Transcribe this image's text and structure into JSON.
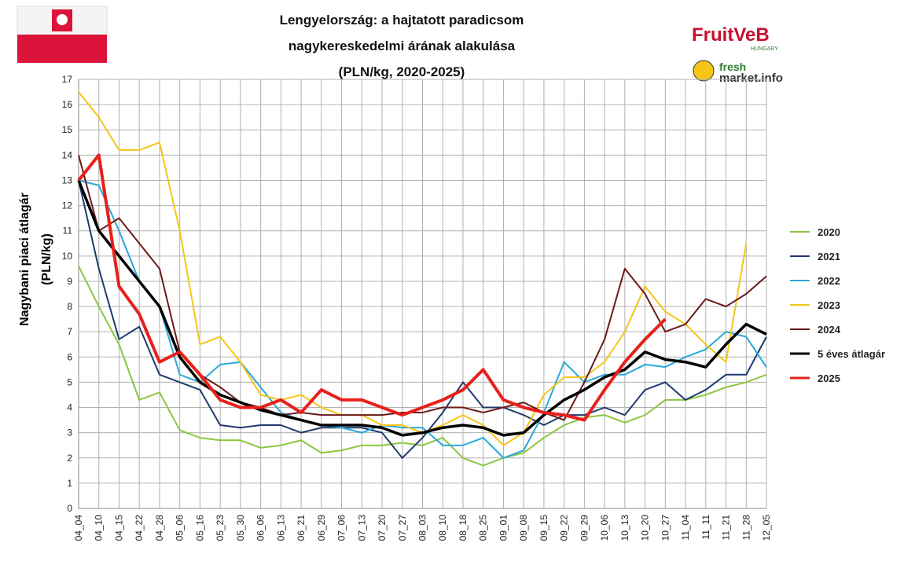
{
  "chart_data": {
    "type": "line",
    "title": [
      "Lengyelország: a hajtatott paradicsom",
      "nagykereskedelmi árának alakulása",
      "(PLN/kg, 2020-2025)"
    ],
    "y_label": [
      "Nagybani piaci átlagár",
      "(PLN/kg)"
    ],
    "categories": [
      "04_04",
      "04_10",
      "04_15",
      "04_22",
      "04_28",
      "05_06",
      "05_16",
      "05_23",
      "05_30",
      "06_06",
      "06_13",
      "06_21",
      "06_29",
      "07_06",
      "07_13",
      "07_20",
      "07_27",
      "08_03",
      "08_10",
      "08_18",
      "08_25",
      "09_01",
      "09_08",
      "09_15",
      "09_22",
      "09_29",
      "10_06",
      "10_13",
      "10_20",
      "10_27",
      "11_04",
      "11_11",
      "11_21",
      "11_28",
      "12_05"
    ],
    "ylim": [
      0,
      17
    ],
    "yticks": [
      0,
      1,
      2,
      3,
      4,
      5,
      6,
      7,
      8,
      9,
      10,
      11,
      12,
      13,
      14,
      15,
      16,
      17
    ],
    "grid": true,
    "legend": "right",
    "series": [
      {
        "name": "2020",
        "color": "#8cc63f",
        "values": [
          9.6,
          8.0,
          6.5,
          4.3,
          4.6,
          3.1,
          2.8,
          2.7,
          2.7,
          2.4,
          2.5,
          2.7,
          2.2,
          2.3,
          2.5,
          2.5,
          2.6,
          2.5,
          2.8,
          2.0,
          1.7,
          2.0,
          2.2,
          2.8,
          3.3,
          3.6,
          3.7,
          3.4,
          3.7,
          4.3,
          4.3,
          4.5,
          4.8,
          5.0,
          5.3
        ]
      },
      {
        "name": "2021",
        "color": "#1f3a6e",
        "values": [
          13.0,
          9.5,
          6.7,
          7.2,
          5.3,
          5.0,
          4.7,
          3.3,
          3.2,
          3.3,
          3.3,
          3.0,
          3.2,
          3.2,
          3.2,
          3.0,
          2.0,
          2.8,
          3.8,
          5.0,
          4.0,
          4.0,
          3.7,
          3.3,
          3.7,
          3.7,
          4.0,
          3.7,
          4.7,
          5.0,
          4.3,
          4.7,
          5.3,
          5.3,
          6.8
        ]
      },
      {
        "name": "2022",
        "color": "#29a8d8",
        "values": [
          13.0,
          12.8,
          11.0,
          9.0,
          8.0,
          5.3,
          5.0,
          5.7,
          5.8,
          4.8,
          3.8,
          3.5,
          3.3,
          3.2,
          3.0,
          3.3,
          3.2,
          3.2,
          2.5,
          2.5,
          2.8,
          2.0,
          2.3,
          3.8,
          5.8,
          5.0,
          5.3,
          5.3,
          5.7,
          5.6,
          6.0,
          6.3,
          7.0,
          6.8,
          5.6
        ]
      },
      {
        "name": "2023",
        "color": "#f5c518",
        "values": [
          16.5,
          15.5,
          14.2,
          14.2,
          14.5,
          11.0,
          6.5,
          6.8,
          5.8,
          4.5,
          4.3,
          4.5,
          4.0,
          3.7,
          3.7,
          3.3,
          3.3,
          3.0,
          3.3,
          3.7,
          3.3,
          2.5,
          3.0,
          4.5,
          5.2,
          5.2,
          5.8,
          7.0,
          8.8,
          7.8,
          7.3,
          6.5,
          5.8,
          10.5,
          null
        ]
      },
      {
        "name": "2024",
        "color": "#6b1a1a",
        "values": [
          14.0,
          11.0,
          11.5,
          10.5,
          9.5,
          6.2,
          5.3,
          4.8,
          4.2,
          4.0,
          3.7,
          3.8,
          3.7,
          3.7,
          3.7,
          3.7,
          3.8,
          3.8,
          4.0,
          4.0,
          3.8,
          4.0,
          4.2,
          3.8,
          3.5,
          5.0,
          6.7,
          9.5,
          8.5,
          7.0,
          7.3,
          8.3,
          8.0,
          8.5,
          9.2
        ]
      },
      {
        "name": "5 éves átlagár",
        "color": "#000000",
        "width": 3.5,
        "values": [
          13.0,
          11.0,
          10.0,
          9.0,
          8.0,
          6.0,
          5.0,
          4.5,
          4.2,
          3.9,
          3.7,
          3.5,
          3.3,
          3.3,
          3.3,
          3.2,
          2.9,
          3.0,
          3.2,
          3.3,
          3.2,
          2.9,
          3.0,
          3.7,
          4.3,
          4.7,
          5.2,
          5.5,
          6.2,
          5.9,
          5.8,
          5.6,
          6.5,
          7.3,
          6.9
        ]
      },
      {
        "name": "2025",
        "color": "#e8201b",
        "width": 4,
        "values": [
          13.0,
          14.0,
          8.8,
          7.7,
          5.8,
          6.2,
          5.3,
          4.3,
          4.0,
          4.0,
          4.3,
          3.8,
          4.7,
          4.3,
          4.3,
          4.0,
          3.7,
          4.0,
          4.3,
          4.7,
          5.5,
          4.3,
          4.0,
          3.8,
          3.7,
          3.5,
          4.7,
          5.8,
          6.7,
          7.5,
          null,
          null,
          null,
          null,
          null
        ]
      }
    ]
  },
  "logos": {
    "fruitveb": "FruitVeB",
    "fruitveb_sub": "HUNGARY",
    "fresh": "fresh",
    "market": "market.info"
  }
}
